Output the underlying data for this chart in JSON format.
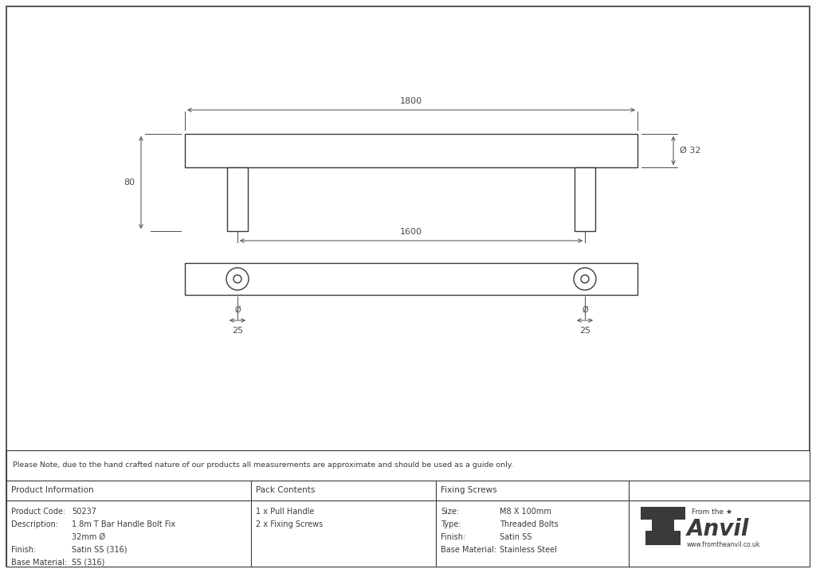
{
  "bg_color": "#ffffff",
  "line_color": "#3a3a3a",
  "dim_color": "#4a4a4a",
  "text_color": "#3a3a3a",
  "note_text": "Please Note, due to the hand crafted nature of our products all measurements are approximate and should be used as a guide only.",
  "product_info": {
    "title": "Product Information",
    "rows": [
      [
        "Product Code:",
        "50237"
      ],
      [
        "Description:",
        "1.8m T Bar Handle Bolt Fix"
      ],
      [
        "",
        "32mm Ø"
      ],
      [
        "Finish:",
        "Satin SS (316)"
      ],
      [
        "Base Material:",
        "SS (316)"
      ]
    ]
  },
  "pack_contents": {
    "title": "Pack Contents",
    "rows": [
      [
        "1 x Pull Handle"
      ],
      [
        "2 x Fixing Screws"
      ]
    ]
  },
  "fixing_screws": {
    "title": "Fixing Screws",
    "rows": [
      [
        "Size:",
        "M8 X 100mm"
      ],
      [
        "Type:",
        "Threaded Bolts"
      ],
      [
        "Finish:",
        "Satin SS"
      ],
      [
        "Base Material:",
        "Stainless Steel"
      ]
    ]
  }
}
